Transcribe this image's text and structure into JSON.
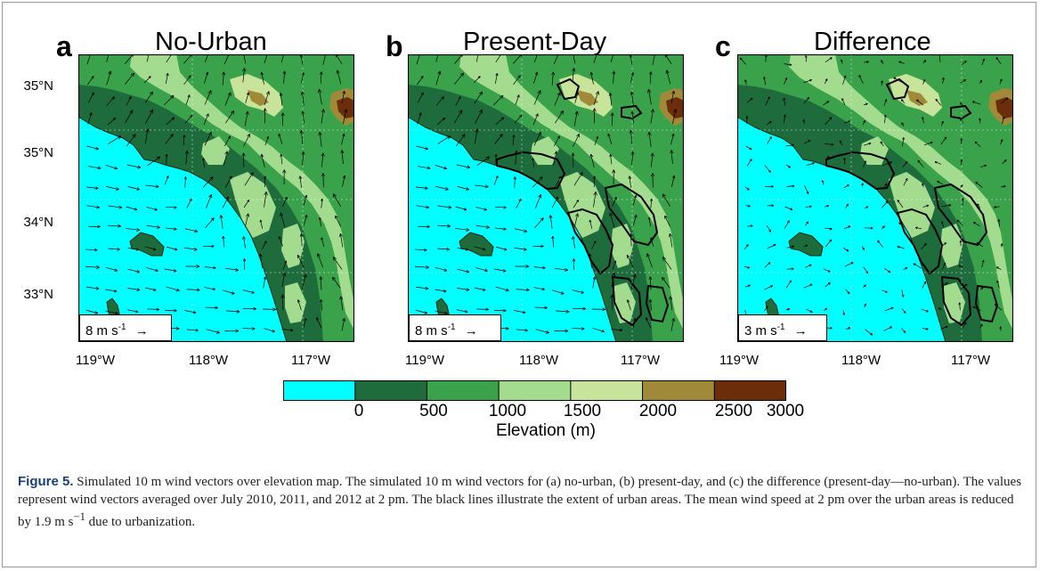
{
  "panels": [
    {
      "letter": "a",
      "title": "No-Urban",
      "scale": "8 m s",
      "exp": "-1",
      "arrow": "→",
      "urban": false,
      "vec": 1.0
    },
    {
      "letter": "b",
      "title": "Present-Day",
      "scale": "8 m s",
      "exp": "-1",
      "arrow": "→",
      "urban": true,
      "vec": 1.0
    },
    {
      "letter": "c",
      "title": "Difference",
      "scale": "3 m s",
      "exp": "-1",
      "arrow": "→",
      "urban": true,
      "vec": 0.35
    }
  ],
  "lat_labels": [
    "35°N",
    "35°N",
    "34°N",
    "33°N"
  ],
  "lon_labels": [
    "119°W",
    "118°W",
    "117°W"
  ],
  "colorbar": {
    "ticks": [
      "0",
      "500",
      "1000",
      "1500",
      "2000",
      "2500",
      "3000"
    ],
    "label": "Elevation (m)",
    "colors": [
      "#00ffff",
      "#1e6b3c",
      "#3aa24a",
      "#a4dc8f",
      "#c8e49a",
      "#a08a3a",
      "#6b2d0a"
    ]
  },
  "caption": {
    "label": "Figure 5.",
    "text": "Simulated 10 m wind vectors over elevation map. The simulated 10 m wind vectors for (a) no-urban, (b) present-day, and (c) the difference (present-day—no-urban). The values represent wind vectors averaged over July 2010, 2011, and 2012 at 2 pm. The black lines illustrate the extent of urban areas. The mean wind speed at 2 pm over the urban areas is reduced by 1.9 m s",
    "exp": "−1",
    "tail": " due to urbanization."
  }
}
